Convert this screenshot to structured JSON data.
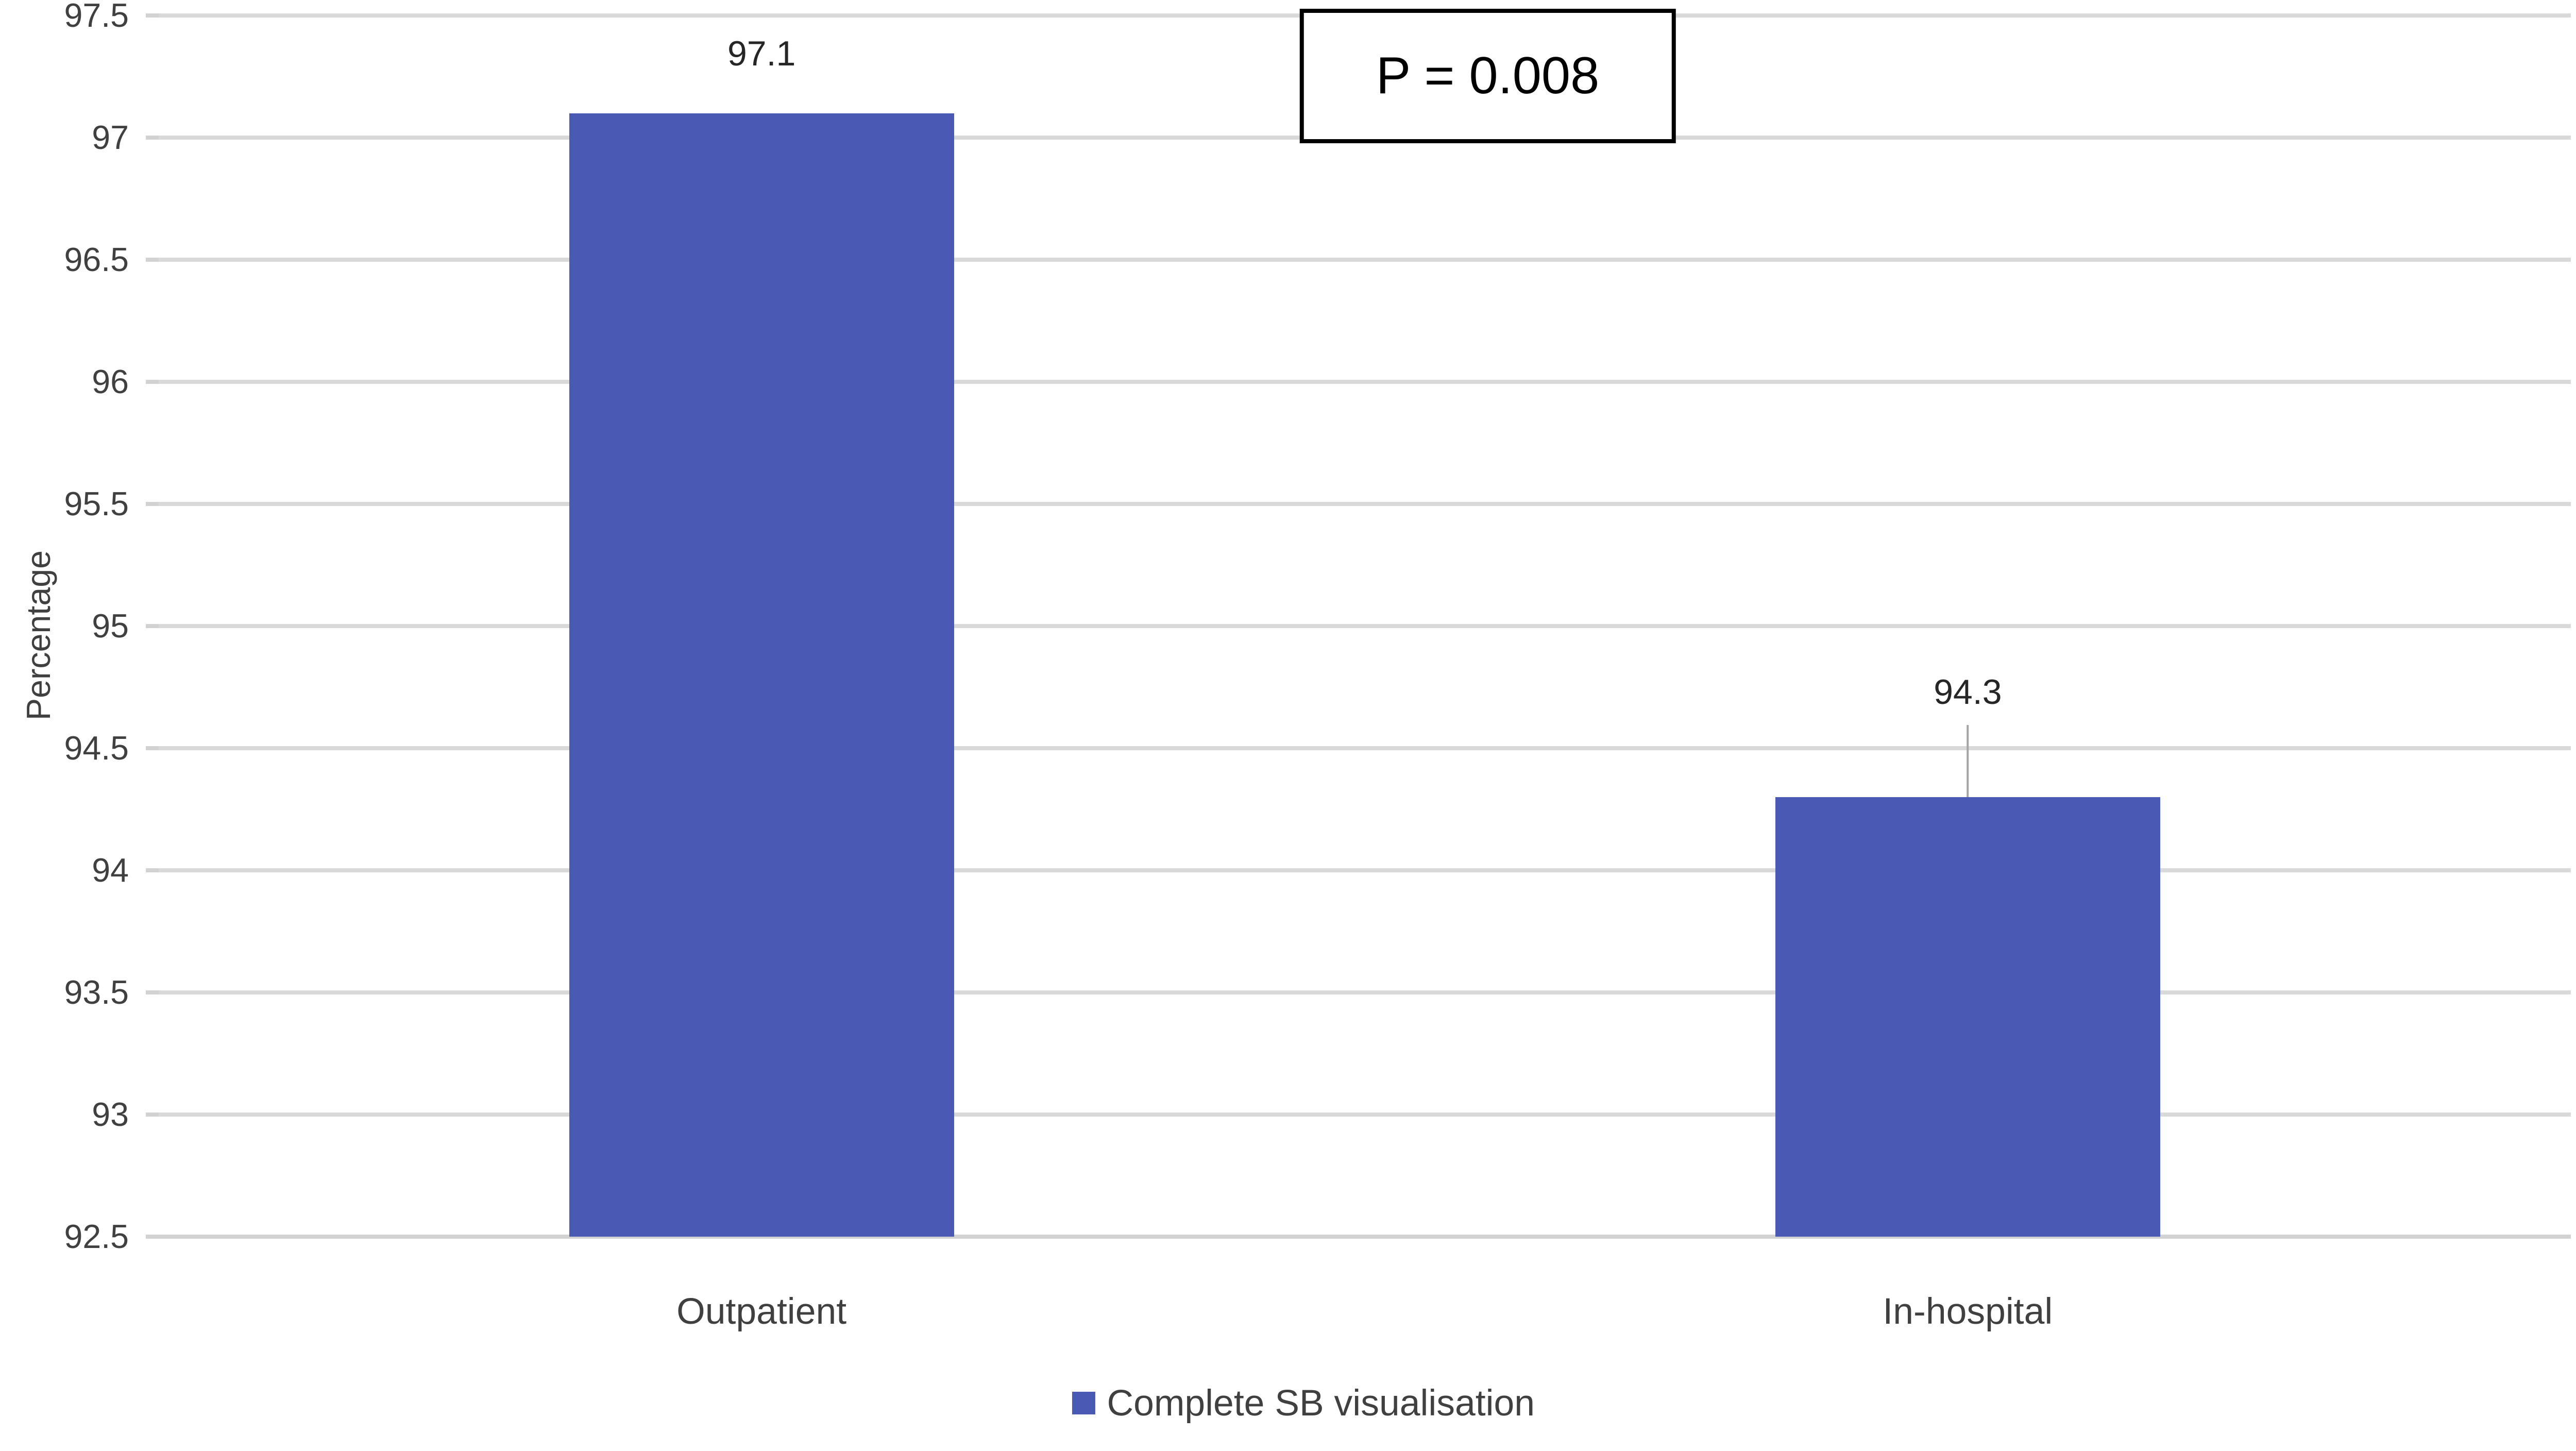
{
  "chart_data": {
    "type": "bar",
    "categories": [
      "Outpatient",
      "In-hospital"
    ],
    "series": [
      {
        "name": "Complete SB visualisation",
        "values": [
          97.1,
          94.3
        ]
      }
    ],
    "data_labels": [
      "97.1",
      "94.3"
    ],
    "leader_lines": [
      false,
      true
    ],
    "title": "",
    "xlabel": "",
    "ylabel": "Percentage",
    "ylim": [
      92.5,
      97.5
    ],
    "ytick_step": 0.5,
    "ytick_labels": [
      "97.5",
      "97",
      "96.5",
      "96",
      "95.5",
      "95",
      "94.5",
      "94",
      "93.5",
      "93",
      "92.5"
    ],
    "grid": true,
    "legend_position": "bottom",
    "annotation": "P = 0.008",
    "colors": {
      "bar": "#4A59B3",
      "gridline": "#D9D9D9",
      "axis_line": "#D2D2D2",
      "tick_mark": "#D2D2D2",
      "leader_line": "#A6A6A6",
      "tick_text": "#404040",
      "data_label_text": "#262626",
      "annotation_border": "#000000",
      "annotation_text": "#000000",
      "background": "#FFFFFF"
    }
  },
  "legend": {
    "items": [
      {
        "label": "Complete SB visualisation",
        "swatch_color": "#4A59B3"
      }
    ]
  },
  "y_axis": {
    "title": "Percentage"
  },
  "annotation_box": {
    "text": "P = 0.008"
  }
}
